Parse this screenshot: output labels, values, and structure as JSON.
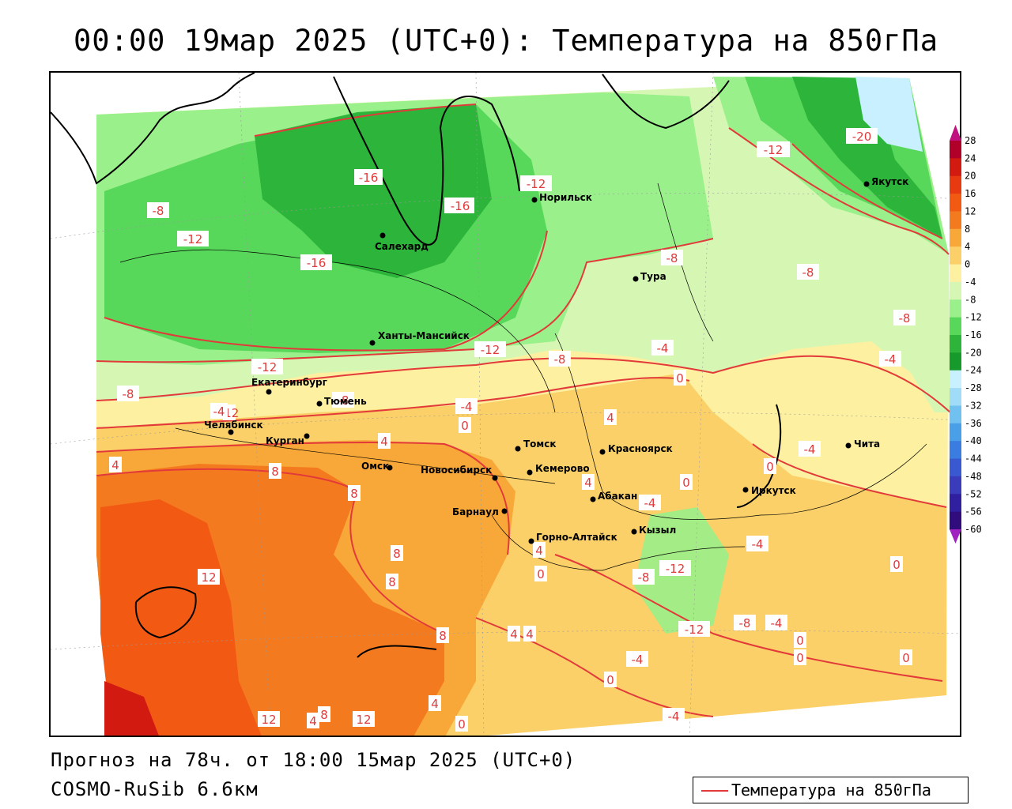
{
  "title": "00:00 19мар 2025 (UTC+0): Температура на 850гПа",
  "forecast_line": "Прогноз на 78ч. от 18:00 15мар 2025 (UTC+0)",
  "model_line": "COSMO-RuSib 6.6км",
  "legend": {
    "label": "Температура на 850гПа",
    "color": "#e23a3a"
  },
  "colorbar": {
    "ticks": [
      "28",
      "24",
      "20",
      "16",
      "12",
      "8",
      "4",
      "0",
      "-4",
      "-8",
      "-12",
      "-16",
      "-20",
      "-24",
      "-28",
      "-32",
      "-36",
      "-40",
      "-44",
      "-48",
      "-52",
      "-56",
      "-60"
    ],
    "colors": [
      "#b0002a",
      "#d21a10",
      "#e83a10",
      "#f25a14",
      "#f47a20",
      "#f8a838",
      "#fbd068",
      "#fdf0a0",
      "#d6f7b4",
      "#9af08a",
      "#58d85a",
      "#2db43a",
      "#169a2c",
      "#c8f0ff",
      "#a0dcf8",
      "#70c0f0",
      "#4aa0e8",
      "#3a7ce0",
      "#3a58d0",
      "#3a3cbc",
      "#3020a0",
      "#300c7c",
      "#600090"
    ]
  },
  "cities": [
    {
      "name": "Якутск"
    },
    {
      "name": "Норильск"
    },
    {
      "name": "Салехард"
    },
    {
      "name": "Тура"
    },
    {
      "name": "Ханты-Мансийск"
    },
    {
      "name": "Екатеринбург"
    },
    {
      "name": "Тюмень"
    },
    {
      "name": "Челябинск"
    },
    {
      "name": "Курган"
    },
    {
      "name": "Омск"
    },
    {
      "name": "Новосибирск"
    },
    {
      "name": "Томск"
    },
    {
      "name": "Кемерово"
    },
    {
      "name": "Красноярск"
    },
    {
      "name": "Барнаул"
    },
    {
      "name": "Абакан"
    },
    {
      "name": "Кызыл"
    },
    {
      "name": "Горно-Алтайск"
    },
    {
      "name": "Иркутск"
    },
    {
      "name": "Чита"
    }
  ],
  "contour_labels": [
    "-20",
    "-16",
    "-16",
    "-16",
    "-12",
    "-12",
    "-12",
    "-12",
    "-12",
    "-12",
    "-12",
    "-12",
    "-8",
    "-8",
    "-8",
    "-8",
    "-8",
    "-8",
    "-8",
    "-8",
    "-8",
    "-4",
    "-4",
    "-4",
    "-4",
    "-4",
    "-4",
    "-4",
    "-4",
    "-4",
    "-4",
    "0",
    "0",
    "0",
    "0",
    "0",
    "0",
    "0",
    "0",
    "0",
    "0",
    "0",
    "4",
    "4",
    "4",
    "4",
    "4",
    "4",
    "4",
    "4",
    "4",
    "8",
    "8",
    "8",
    "8",
    "8",
    "8",
    "12",
    "12",
    "12"
  ]
}
